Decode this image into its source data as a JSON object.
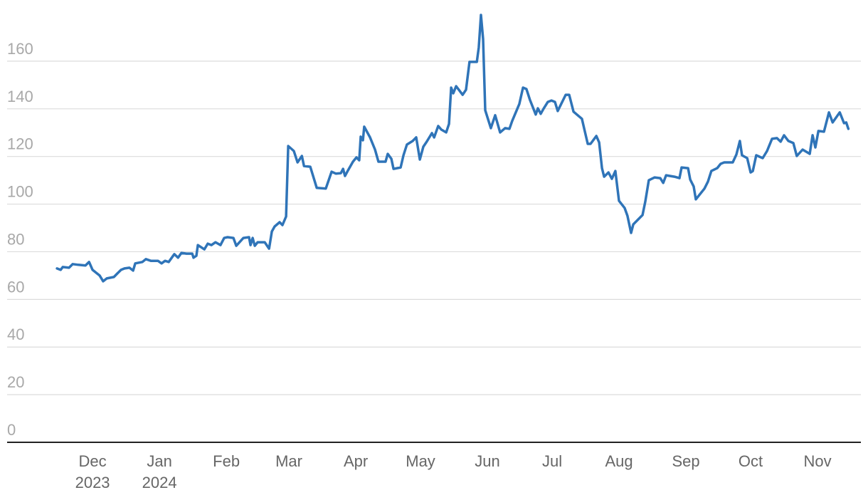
{
  "chart_data": {
    "type": "line",
    "color": "#2f74b8",
    "x": [
      -16.5,
      -14.8,
      -13.8,
      -10.9,
      -9.2,
      -6.6,
      -3.3,
      -1.6,
      0,
      3.3,
      4.9,
      6.6,
      9.9,
      11.5,
      13.2,
      14.8,
      17.1,
      18.8,
      19.8,
      23.1,
      24.7,
      27.0,
      30.3,
      32.0,
      33.6,
      35.3,
      37.9,
      39.6,
      41.2,
      43.5,
      46.2,
      46.8,
      48.1,
      48.8,
      51.8,
      53.4,
      55.1,
      57.0,
      59.3,
      61.0,
      62.6,
      65.3,
      66.6,
      69.9,
      72.5,
      73.2,
      74.2,
      75.2,
      76.5,
      79.8,
      81.8,
      83.1,
      84.4,
      86.7,
      88.0,
      89.7,
      90.7,
      93.3,
      95.0,
      97.0,
      98.0,
      100.9,
      103.9,
      108.1,
      110.8,
      112.8,
      115.1,
      116.1,
      117.0,
      118.4,
      120.7,
      122.3,
      123.6,
      124.3,
      125.3,
      125.9,
      128.6,
      130.9,
      132.5,
      135.8,
      136.8,
      138.5,
      139.5,
      142.8,
      144.1,
      145.7,
      148.4,
      150.0,
      151.7,
      153.3,
      154.9,
      157.3,
      158.3,
      160.2,
      161.6,
      163.9,
      165.2,
      166.2,
      167.2,
      168.5,
      171.5,
      173.1,
      174.7,
      178.1,
      179.0,
      180.0,
      181.0,
      182.0,
      184.6,
      186.6,
      188.9,
      191.2,
      193.2,
      194.5,
      197.8,
      199.5,
      201.1,
      202.7,
      205.4,
      206.4,
      207.7,
      209.0,
      211.0,
      212.7,
      214.3,
      215.6,
      219.3,
      220.9,
      222.9,
      226.8,
      228.2,
      229.5,
      230.8,
      233.5,
      234.8,
      236.1,
      237.1,
      239.1,
      240.7,
      242.3,
      244.0,
      246.6,
      247.9,
      249.6,
      250.6,
      254.9,
      256.2,
      257.8,
      260.5,
      263.1,
      264.5,
      265.8,
      269.7,
      272.0,
      273.0,
      276.0,
      277.0,
      278.6,
      279.6,
      283.6,
      285.2,
      286.8,
      289.5,
      291.1,
      292.8,
      296.7,
      298.4,
      300.0,
      301.0,
      303.4,
      305.0,
      306.0,
      307.6,
      310.6,
      312.6,
      314.9,
      317.2,
      318.9,
      320.5,
      322.5,
      324.8,
      326.4,
      329.1,
      332.4,
      333.7,
      335.0,
      336.4,
      339.0,
      341.3,
      343.0,
      346.3,
      348.3,
      349.3,
      350.3
    ],
    "values": [
      73.0,
      72.4,
      73.6,
      73.3,
      74.8,
      74.5,
      74.2,
      75.7,
      72.4,
      70.0,
      67.6,
      68.8,
      69.4,
      70.9,
      72.4,
      73.0,
      73.3,
      72.1,
      75.1,
      75.7,
      76.9,
      76.2,
      76.2,
      75.1,
      76.2,
      75.7,
      79.0,
      77.5,
      79.5,
      79.2,
      79.2,
      77.5,
      78.3,
      82.8,
      81.0,
      83.4,
      82.8,
      84.0,
      82.8,
      85.8,
      86.1,
      85.8,
      82.5,
      85.8,
      86.1,
      82.8,
      85.8,
      82.5,
      84.0,
      84.0,
      81.3,
      88.5,
      90.6,
      92.4,
      91.2,
      94.8,
      124.4,
      122.3,
      117.5,
      120.2,
      116.0,
      115.7,
      106.8,
      106.5,
      113.6,
      112.8,
      113.0,
      114.8,
      111.8,
      114.2,
      117.8,
      119.6,
      118.4,
      128.3,
      126.8,
      132.5,
      128.0,
      122.9,
      117.8,
      117.8,
      121.1,
      119.0,
      114.8,
      115.4,
      120.5,
      125.0,
      126.5,
      128.0,
      118.7,
      124.1,
      126.2,
      129.8,
      128.0,
      132.8,
      131.3,
      130.1,
      133.7,
      148.9,
      146.5,
      149.5,
      145.9,
      148.0,
      159.7,
      159.7,
      165.7,
      179.4,
      169.3,
      139.4,
      131.9,
      137.3,
      130.1,
      131.9,
      131.6,
      134.9,
      142.0,
      148.9,
      148.3,
      143.8,
      137.6,
      140.2,
      137.9,
      140.0,
      142.9,
      143.5,
      142.9,
      139.1,
      145.9,
      145.9,
      138.8,
      135.8,
      130.4,
      125.3,
      125.3,
      128.6,
      125.9,
      115.1,
      111.5,
      113.3,
      110.6,
      113.9,
      101.4,
      98.4,
      95.1,
      87.9,
      91.5,
      95.4,
      101.1,
      110.0,
      111.2,
      110.9,
      108.9,
      112.1,
      111.5,
      110.9,
      115.4,
      115.1,
      110.3,
      107.4,
      102.0,
      106.5,
      109.4,
      113.9,
      115.1,
      116.9,
      117.5,
      117.5,
      120.8,
      126.5,
      120.5,
      119.3,
      113.3,
      113.9,
      120.5,
      119.3,
      122.3,
      127.4,
      127.7,
      126.2,
      128.9,
      126.5,
      125.6,
      120.2,
      122.9,
      121.1,
      128.9,
      123.8,
      130.7,
      130.4,
      138.5,
      134.3,
      138.5,
      134.0,
      134.3,
      131.6
    ],
    "xlim": [
      -39.6,
      356.1
    ],
    "xticks": [
      {
        "value": 0,
        "label": "Dec\n2023"
      },
      {
        "value": 31,
        "label": "Jan\n2024"
      },
      {
        "value": 62,
        "label": "Feb"
      },
      {
        "value": 91,
        "label": "Mar"
      },
      {
        "value": 122,
        "label": "Apr"
      },
      {
        "value": 152,
        "label": "May"
      },
      {
        "value": 183,
        "label": "Jun"
      },
      {
        "value": 213,
        "label": "Jul"
      },
      {
        "value": 244,
        "label": "Aug"
      },
      {
        "value": 275,
        "label": "Sep"
      },
      {
        "value": 305,
        "label": "Oct"
      },
      {
        "value": 336,
        "label": "Nov"
      }
    ],
    "ylim": [
      0,
      181.2
    ],
    "yticks": [
      0,
      20,
      40,
      60,
      80,
      100,
      120,
      140,
      160
    ],
    "grid": true
  }
}
